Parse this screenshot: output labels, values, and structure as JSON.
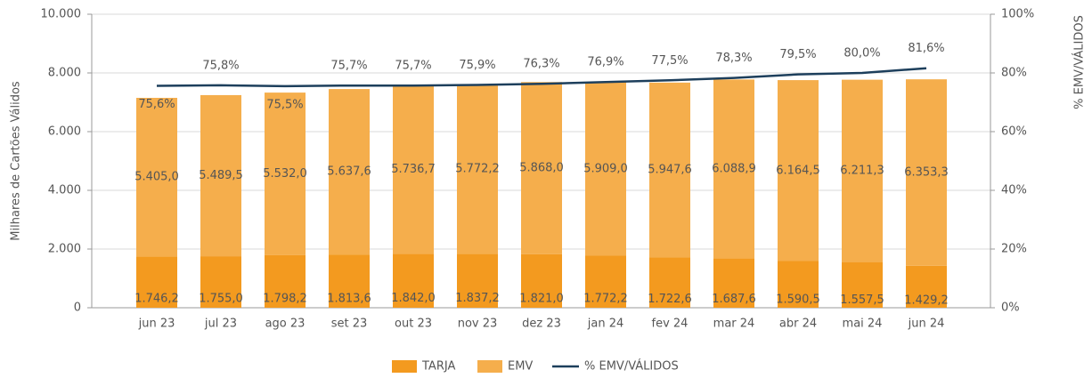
{
  "chart_data": {
    "type": "stacked_bar_line",
    "y_label": "Milhares de Cartões Válidos",
    "y2_label": "% EMV/VÁLIDOS",
    "categories": [
      "jun 23",
      "jul 23",
      "ago 23",
      "set 23",
      "out 23",
      "nov 23",
      "dez 23",
      "jan 24",
      "fev 24",
      "mar 24",
      "abr 24",
      "mai 24",
      "jun 24"
    ],
    "series": [
      {
        "name": "TARJA",
        "color": "#f39a1f",
        "values": [
          1746.2,
          1755.0,
          1798.2,
          1813.6,
          1842.0,
          1837.2,
          1821.0,
          1772.2,
          1722.6,
          1687.6,
          1590.5,
          1557.5,
          1429.2
        ],
        "value_labels": [
          "1.746,2",
          "1.755,0",
          "1.798,2",
          "1.813,6",
          "1.842,0",
          "1.837,2",
          "1.821,0",
          "1.772,2",
          "1.722,6",
          "1.687,6",
          "1.590,5",
          "1.557,5",
          "1.429,2"
        ]
      },
      {
        "name": "EMV",
        "color": "#f5ae4c",
        "values": [
          5405.0,
          5489.5,
          5532.0,
          5637.6,
          5736.7,
          5772.2,
          5868.0,
          5909.0,
          5947.6,
          6088.9,
          6164.5,
          6211.3,
          6353.3
        ],
        "value_labels": [
          "5.405,0",
          "5.489,5",
          "5.532,0",
          "5.637,6",
          "5.736,7",
          "5.772,2",
          "5.868,0",
          "5.909,0",
          "5.947,6",
          "6.088,9",
          "6.164,5",
          "6.211,3",
          "6.353,3"
        ]
      },
      {
        "name": "% EMV/VÁLIDOS",
        "color": "#1d3f5c",
        "axis": "y2",
        "values": [
          75.6,
          75.8,
          75.5,
          75.7,
          75.7,
          75.9,
          76.3,
          76.9,
          77.5,
          78.3,
          79.5,
          80.0,
          81.6
        ],
        "value_labels": [
          "75,6%",
          "75,8%",
          "75,5%",
          "75,7%",
          "75,7%",
          "75,9%",
          "76,3%",
          "76,9%",
          "77,5%",
          "78,3%",
          "79,5%",
          "80,0%",
          "81,6%"
        ]
      }
    ],
    "ylim": [
      0,
      10000
    ],
    "yticks": [
      0,
      {
        "value": 2000,
        "label": "2.000"
      },
      {
        "value": 4000,
        "label": "4.000"
      },
      {
        "value": 6000,
        "label": "6.000"
      },
      {
        "value": 8000,
        "label": "8.000"
      },
      {
        "value": 10000,
        "label": "10.000"
      }
    ],
    "y2lim": [
      0,
      100
    ],
    "y2ticks": [
      {
        "value": 0,
        "label": "0%"
      },
      {
        "value": 20,
        "label": "20%"
      },
      {
        "value": 40,
        "label": "40%"
      },
      {
        "value": 60,
        "label": "60%"
      },
      {
        "value": 80,
        "label": "80%"
      },
      {
        "value": 100,
        "label": "100%"
      }
    ],
    "grid": true,
    "legend": "bottom"
  }
}
